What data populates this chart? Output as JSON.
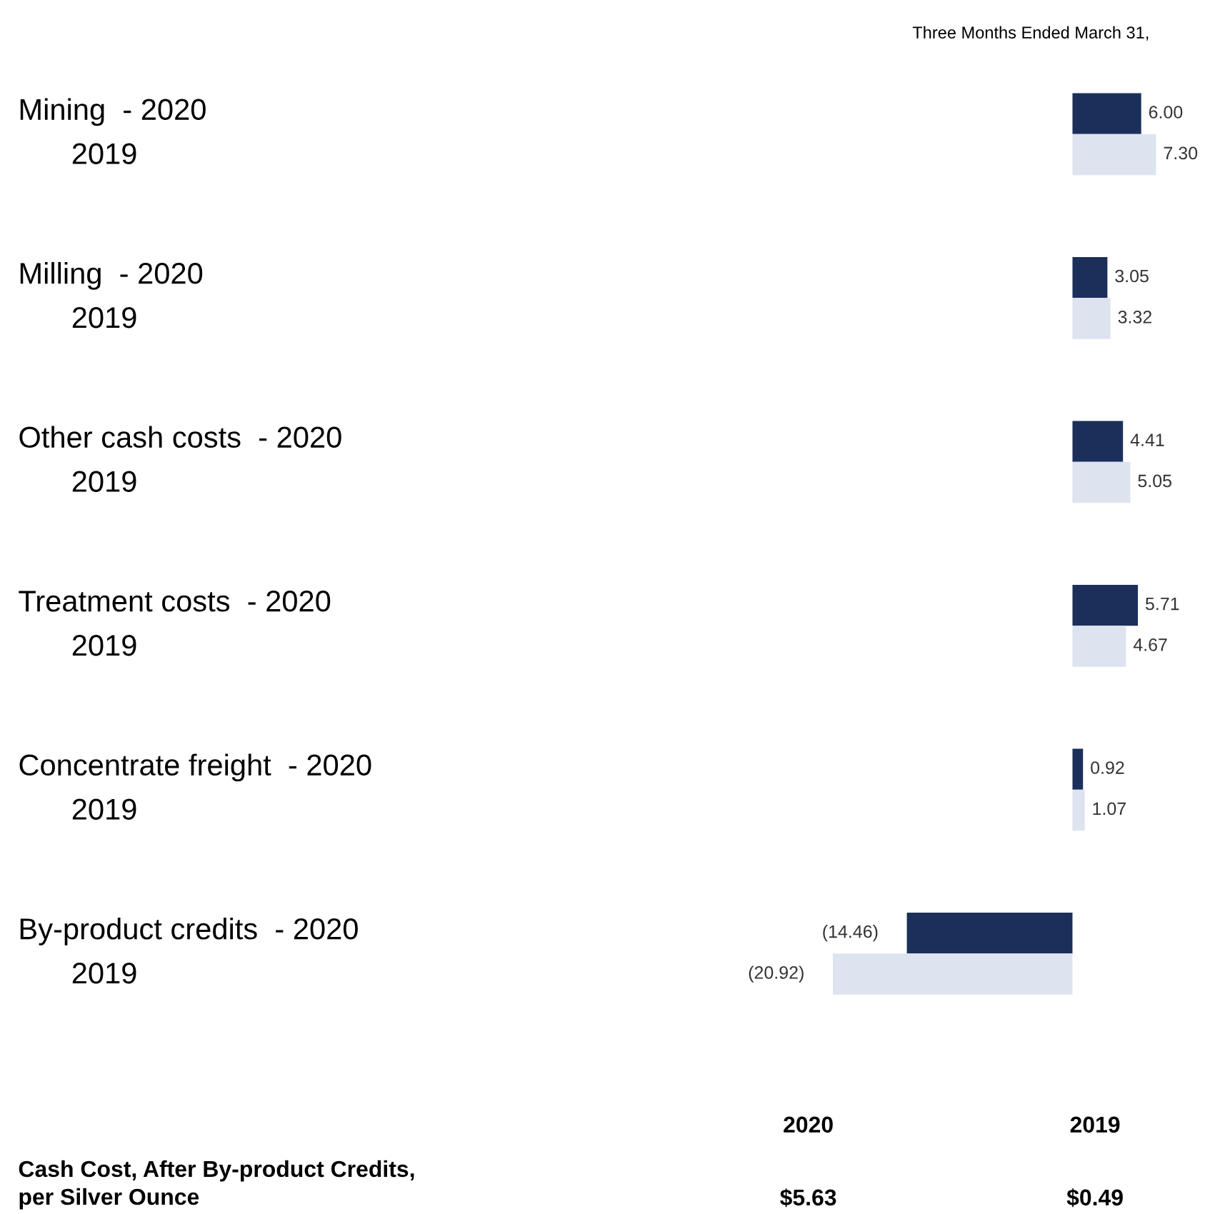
{
  "chart_data": {
    "type": "bar",
    "orientation": "horizontal",
    "categories": [
      "Mining  - 2020\n2019",
      "Milling  - 2020\n2019",
      "Other cash costs  - 2020\n2019",
      "Treatment costs  - 2020\n2019",
      "Concentrate freight  - 2020\n2019",
      "By-product credits  - 2020\n2019"
    ],
    "series": [
      {
        "color": "#1b2f5a",
        "values": [
          6.0,
          3.05,
          4.41,
          5.71,
          0.92,
          -14.46
        ],
        "value_labels": [
          "6.00",
          "3.05",
          "4.41",
          "5.71",
          "0.92",
          "(14.46)"
        ]
      },
      {
        "color": "#dde4ef",
        "values": [
          7.3,
          3.32,
          5.05,
          4.67,
          1.07,
          -20.92
        ],
        "value_labels": [
          "7.30",
          "3.32",
          "5.05",
          "4.67",
          "1.07",
          "(20.92)"
        ]
      }
    ],
    "annotations": [
      "Three Months Ended March 31,",
      "2020",
      "2019",
      "Cash Cost, After By-product Credits,\nper Silver Ounce",
      "$5.63",
      "$0.49"
    ]
  }
}
